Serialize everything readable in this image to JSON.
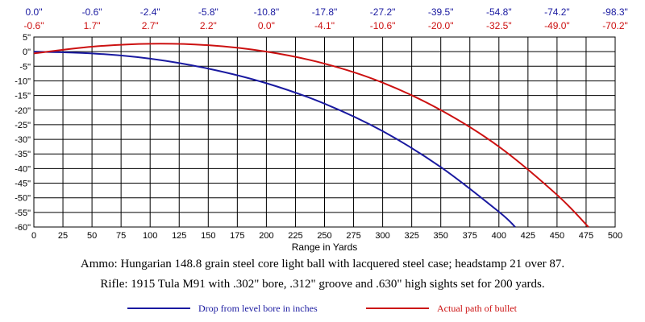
{
  "chart_data": {
    "type": "line",
    "xlabel": "Range in Yards",
    "ylabel": "",
    "xlim": [
      0,
      500
    ],
    "ylim": [
      -60,
      5
    ],
    "x_ticks": [
      0,
      25,
      50,
      75,
      100,
      125,
      150,
      175,
      200,
      225,
      250,
      275,
      300,
      325,
      350,
      375,
      400,
      425,
      450,
      475,
      500
    ],
    "y_ticks": [
      5,
      0,
      -5,
      -10,
      -15,
      -20,
      -25,
      -30,
      -35,
      -40,
      -45,
      -50,
      -55,
      -60
    ],
    "y_tick_suffix": "\"",
    "grid": true,
    "top_labels": {
      "positions_yards": [
        0,
        50,
        100,
        150,
        200,
        250,
        300,
        350,
        400,
        450,
        500
      ],
      "drop_row": [
        "0.0\"",
        "-0.6\"",
        "-2.4\"",
        "-5.8\"",
        "-10.8\"",
        "-17.8\"",
        "-27.2\"",
        "-39.5\"",
        "-54.8\"",
        "-74.2\"",
        "-98.3\""
      ],
      "path_row": [
        "-0.6\"",
        "1.7\"",
        "2.7\"",
        "2.2\"",
        "0.0\"",
        "-4.1\"",
        "-10.6\"",
        "-20.0\"",
        "-32.5\"",
        "-49.0\"",
        "-70.2\""
      ]
    },
    "series": [
      {
        "name": "Drop from level bore in inches",
        "color": "#1a1aa0",
        "x": [
          0,
          50,
          100,
          150,
          200,
          250,
          300,
          350,
          400,
          414
        ],
        "values": [
          0.0,
          -0.6,
          -2.4,
          -5.8,
          -10.8,
          -17.8,
          -27.2,
          -39.5,
          -54.8,
          -60.0
        ]
      },
      {
        "name": "Actual path of bullet",
        "color": "#cc1111",
        "x": [
          0,
          50,
          100,
          150,
          200,
          250,
          300,
          350,
          400,
          450,
          477
        ],
        "values": [
          -0.6,
          1.7,
          2.7,
          2.2,
          0.0,
          -4.1,
          -10.6,
          -20.0,
          -32.5,
          -49.0,
          -60.0
        ]
      }
    ]
  },
  "captions": {
    "ammo": "Ammo:  Hungarian 148.8 grain steel core light ball with lacquered steel case; headstamp 21 over 87.",
    "rifle": "Rifle:  1915 Tula M91 with .302\" bore, .312\" groove and .630\" high sights set for 200 yards."
  },
  "legend": {
    "drop": "Drop from level bore in inches",
    "path": "Actual path of bullet"
  }
}
